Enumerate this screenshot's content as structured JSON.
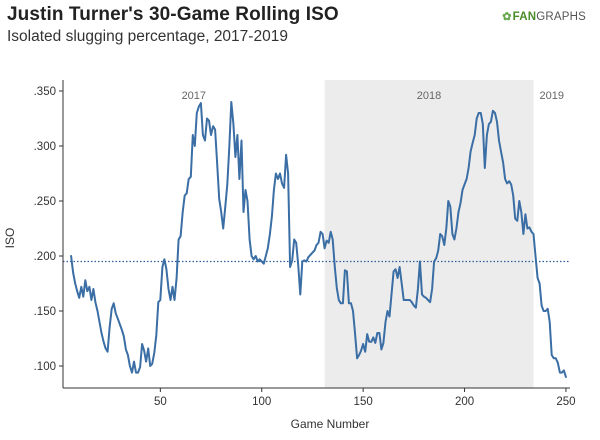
{
  "header": {
    "title": "Justin Turner's 30-Game Rolling ISO",
    "subtitle": "Isolated slugging percentage, 2017-2019",
    "brand_prefix": "FAN",
    "brand_suffix": "GRAPHS",
    "brand_icon": "leaf-icon"
  },
  "colors": {
    "line": "#3a6ea5",
    "reference": "#2d5c9a",
    "shade": "#ececec",
    "axis": "#333333",
    "brand_green": "#4a8c2a"
  },
  "chart_data": {
    "type": "line",
    "title": "Justin Turner's 30-Game Rolling ISO",
    "subtitle": "Isolated slugging percentage, 2017-2019",
    "xlabel": "Game Number",
    "ylabel": "ISO",
    "xlim": [
      2,
      252
    ],
    "ylim": [
      0.08,
      0.36
    ],
    "x_ticks": [
      50,
      100,
      150,
      200,
      250
    ],
    "y_ticks": [
      0.1,
      0.15,
      0.2,
      0.25,
      0.3,
      0.35
    ],
    "y_tick_labels": [
      ".100",
      ".150",
      ".200",
      ".250",
      ".300",
      ".350"
    ],
    "reference_line": {
      "y": 0.195,
      "style": "dotted"
    },
    "seasons": [
      {
        "label": "2017",
        "x_start": 2,
        "x_end": 131,
        "shaded": false
      },
      {
        "label": "2018",
        "x_start": 131,
        "x_end": 234,
        "shaded": true
      },
      {
        "label": "2019",
        "x_start": 234,
        "x_end": 252,
        "shaded": false
      }
    ],
    "grid": false,
    "legend": "none",
    "series": [
      {
        "points": [
          [
            6,
            0.2
          ],
          [
            7,
            0.185
          ],
          [
            8,
            0.175
          ],
          [
            9,
            0.168
          ],
          [
            10,
            0.162
          ],
          [
            11,
            0.172
          ],
          [
            12,
            0.163
          ],
          [
            13,
            0.178
          ],
          [
            14,
            0.168
          ],
          [
            15,
            0.172
          ],
          [
            16,
            0.16
          ],
          [
            17,
            0.17
          ],
          [
            18,
            0.158
          ],
          [
            19,
            0.15
          ],
          [
            20,
            0.14
          ],
          [
            21,
            0.13
          ],
          [
            22,
            0.122
          ],
          [
            23,
            0.116
          ],
          [
            24,
            0.113
          ],
          [
            25,
            0.135
          ],
          [
            26,
            0.152
          ],
          [
            27,
            0.157
          ],
          [
            28,
            0.148
          ],
          [
            29,
            0.143
          ],
          [
            30,
            0.138
          ],
          [
            31,
            0.133
          ],
          [
            32,
            0.127
          ],
          [
            33,
            0.115
          ],
          [
            34,
            0.11
          ],
          [
            35,
            0.1
          ],
          [
            36,
            0.094
          ],
          [
            37,
            0.104
          ],
          [
            38,
            0.094
          ],
          [
            39,
            0.094
          ],
          [
            40,
            0.099
          ],
          [
            41,
            0.12
          ],
          [
            42,
            0.114
          ],
          [
            43,
            0.104
          ],
          [
            44,
            0.116
          ],
          [
            45,
            0.1
          ],
          [
            46,
            0.102
          ],
          [
            47,
            0.112
          ],
          [
            48,
            0.128
          ],
          [
            49,
            0.158
          ],
          [
            50,
            0.16
          ],
          [
            51,
            0.19
          ],
          [
            52,
            0.197
          ],
          [
            53,
            0.188
          ],
          [
            54,
            0.17
          ],
          [
            55,
            0.16
          ],
          [
            56,
            0.172
          ],
          [
            57,
            0.16
          ],
          [
            58,
            0.18
          ],
          [
            59,
            0.215
          ],
          [
            60,
            0.218
          ],
          [
            61,
            0.24
          ],
          [
            62,
            0.255
          ],
          [
            63,
            0.257
          ],
          [
            64,
            0.27
          ],
          [
            65,
            0.272
          ],
          [
            66,
            0.31
          ],
          [
            67,
            0.3
          ],
          [
            68,
            0.33
          ],
          [
            69,
            0.336
          ],
          [
            70,
            0.339
          ],
          [
            71,
            0.31
          ],
          [
            72,
            0.305
          ],
          [
            73,
            0.325
          ],
          [
            74,
            0.323
          ],
          [
            75,
            0.31
          ],
          [
            76,
            0.318
          ],
          [
            77,
            0.315
          ],
          [
            78,
            0.285
          ],
          [
            79,
            0.252
          ],
          [
            80,
            0.24
          ],
          [
            81,
            0.225
          ],
          [
            82,
            0.244
          ],
          [
            83,
            0.265
          ],
          [
            84,
            0.299
          ],
          [
            85,
            0.34
          ],
          [
            86,
            0.32
          ],
          [
            87,
            0.29
          ],
          [
            88,
            0.31
          ],
          [
            89,
            0.27
          ],
          [
            90,
            0.305
          ],
          [
            91,
            0.24
          ],
          [
            92,
            0.26
          ],
          [
            93,
            0.25
          ],
          [
            94,
            0.215
          ],
          [
            95,
            0.2
          ],
          [
            96,
            0.197
          ],
          [
            97,
            0.2
          ],
          [
            98,
            0.195
          ],
          [
            99,
            0.197
          ],
          [
            100,
            0.195
          ],
          [
            101,
            0.193
          ],
          [
            102,
            0.2
          ],
          [
            103,
            0.207
          ],
          [
            104,
            0.22
          ],
          [
            105,
            0.236
          ],
          [
            106,
            0.26
          ],
          [
            107,
            0.275
          ],
          [
            108,
            0.27
          ],
          [
            109,
            0.275
          ],
          [
            110,
            0.266
          ],
          [
            111,
            0.262
          ],
          [
            112,
            0.292
          ],
          [
            113,
            0.275
          ],
          [
            114,
            0.19
          ],
          [
            115,
            0.196
          ],
          [
            116,
            0.215
          ],
          [
            117,
            0.212
          ],
          [
            118,
            0.192
          ],
          [
            119,
            0.165
          ],
          [
            120,
            0.195
          ],
          [
            121,
            0.196
          ],
          [
            122,
            0.195
          ],
          [
            123,
            0.199
          ],
          [
            124,
            0.201
          ],
          [
            125,
            0.203
          ],
          [
            126,
            0.205
          ],
          [
            127,
            0.21
          ],
          [
            128,
            0.212
          ],
          [
            129,
            0.222
          ],
          [
            130,
            0.22
          ],
          [
            131,
            0.207
          ],
          [
            132,
            0.214
          ],
          [
            133,
            0.212
          ],
          [
            134,
            0.222
          ],
          [
            135,
            0.215
          ],
          [
            136,
            0.19
          ],
          [
            137,
            0.171
          ],
          [
            138,
            0.16
          ],
          [
            139,
            0.157
          ],
          [
            140,
            0.157
          ],
          [
            141,
            0.187
          ],
          [
            142,
            0.186
          ],
          [
            143,
            0.157
          ],
          [
            144,
            0.157
          ],
          [
            145,
            0.15
          ],
          [
            146,
            0.13
          ],
          [
            147,
            0.107
          ],
          [
            148,
            0.11
          ],
          [
            149,
            0.114
          ],
          [
            150,
            0.12
          ],
          [
            151,
            0.113
          ],
          [
            152,
            0.129
          ],
          [
            153,
            0.122
          ],
          [
            154,
            0.122
          ],
          [
            155,
            0.126
          ],
          [
            156,
            0.121
          ],
          [
            157,
            0.13
          ],
          [
            158,
            0.13
          ],
          [
            159,
            0.115
          ],
          [
            160,
            0.121
          ],
          [
            161,
            0.14
          ],
          [
            162,
            0.15
          ],
          [
            163,
            0.145
          ],
          [
            164,
            0.165
          ],
          [
            165,
            0.186
          ],
          [
            166,
            0.188
          ],
          [
            167,
            0.18
          ],
          [
            168,
            0.19
          ],
          [
            169,
            0.175
          ],
          [
            170,
            0.16
          ],
          [
            171,
            0.16
          ],
          [
            172,
            0.16
          ],
          [
            173,
            0.16
          ],
          [
            174,
            0.158
          ],
          [
            175,
            0.155
          ],
          [
            176,
            0.153
          ],
          [
            177,
            0.17
          ],
          [
            178,
            0.195
          ],
          [
            179,
            0.165
          ],
          [
            180,
            0.163
          ],
          [
            181,
            0.162
          ],
          [
            182,
            0.16
          ],
          [
            183,
            0.158
          ],
          [
            184,
            0.17
          ],
          [
            185,
            0.195
          ],
          [
            186,
            0.198
          ],
          [
            187,
            0.205
          ],
          [
            188,
            0.22
          ],
          [
            189,
            0.218
          ],
          [
            190,
            0.21
          ],
          [
            191,
            0.225
          ],
          [
            192,
            0.25
          ],
          [
            193,
            0.245
          ],
          [
            194,
            0.22
          ],
          [
            195,
            0.215
          ],
          [
            196,
            0.225
          ],
          [
            197,
            0.24
          ],
          [
            198,
            0.248
          ],
          [
            199,
            0.26
          ],
          [
            200,
            0.265
          ],
          [
            201,
            0.27
          ],
          [
            202,
            0.28
          ],
          [
            203,
            0.295
          ],
          [
            204,
            0.303
          ],
          [
            205,
            0.31
          ],
          [
            206,
            0.325
          ],
          [
            207,
            0.33
          ],
          [
            208,
            0.33
          ],
          [
            209,
            0.32
          ],
          [
            210,
            0.28
          ],
          [
            211,
            0.31
          ],
          [
            212,
            0.32
          ],
          [
            213,
            0.322
          ],
          [
            214,
            0.332
          ],
          [
            215,
            0.33
          ],
          [
            216,
            0.322
          ],
          [
            217,
            0.305
          ],
          [
            218,
            0.295
          ],
          [
            219,
            0.285
          ],
          [
            220,
            0.27
          ],
          [
            221,
            0.266
          ],
          [
            222,
            0.268
          ],
          [
            223,
            0.265
          ],
          [
            224,
            0.255
          ],
          [
            225,
            0.234
          ],
          [
            226,
            0.232
          ],
          [
            227,
            0.25
          ],
          [
            228,
            0.24
          ],
          [
            229,
            0.22
          ],
          [
            230,
            0.238
          ],
          [
            231,
            0.225
          ],
          [
            232,
            0.226
          ],
          [
            233,
            0.222
          ],
          [
            234,
            0.22
          ],
          [
            235,
            0.2
          ],
          [
            236,
            0.18
          ],
          [
            237,
            0.175
          ],
          [
            238,
            0.155
          ],
          [
            239,
            0.15
          ],
          [
            240,
            0.15
          ],
          [
            241,
            0.152
          ],
          [
            242,
            0.14
          ],
          [
            243,
            0.11
          ],
          [
            244,
            0.107
          ],
          [
            245,
            0.107
          ],
          [
            246,
            0.103
          ],
          [
            247,
            0.094
          ],
          [
            248,
            0.094
          ],
          [
            249,
            0.096
          ],
          [
            250,
            0.09
          ]
        ]
      }
    ]
  }
}
